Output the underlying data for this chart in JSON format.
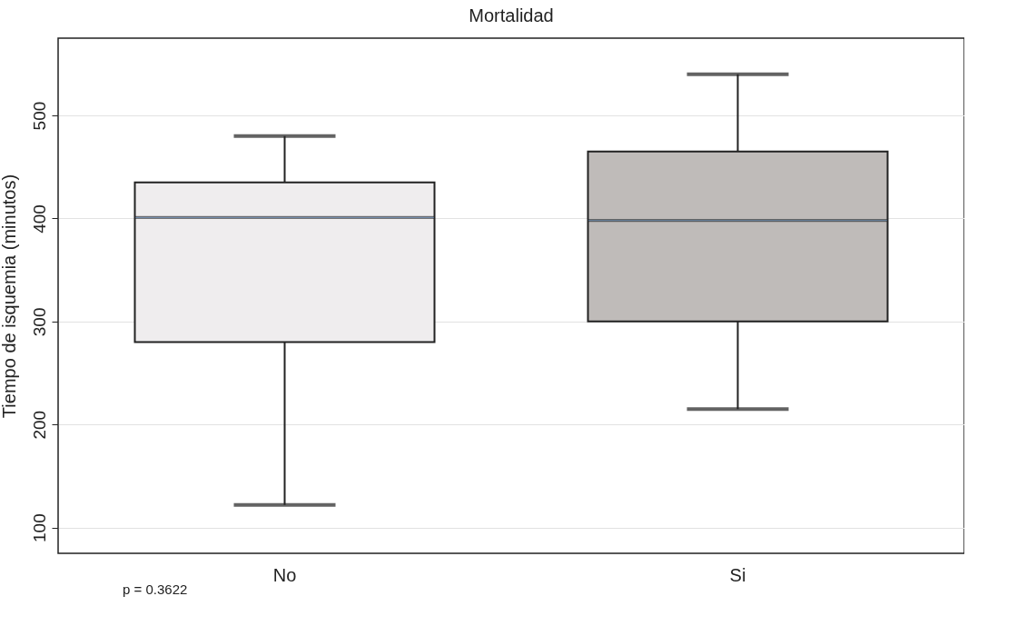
{
  "chart_data": {
    "type": "box",
    "title": "Mortalidad",
    "ylabel": "Tiempo de isquemia (minutos)",
    "categories": [
      "No",
      "Si"
    ],
    "boxes": [
      {
        "low": 122,
        "q1": 280,
        "median": 401,
        "q3": 435,
        "high": 480
      },
      {
        "low": 215,
        "q1": 300,
        "median": 398,
        "q3": 465,
        "high": 540
      }
    ],
    "colors": [
      "#efedee",
      "#bfbbb9"
    ],
    "ylim": [
      75,
      575
    ],
    "yticks": [
      100,
      200,
      300,
      400,
      500
    ],
    "grid": "y",
    "annotations": [
      "p = 0.3622"
    ]
  }
}
